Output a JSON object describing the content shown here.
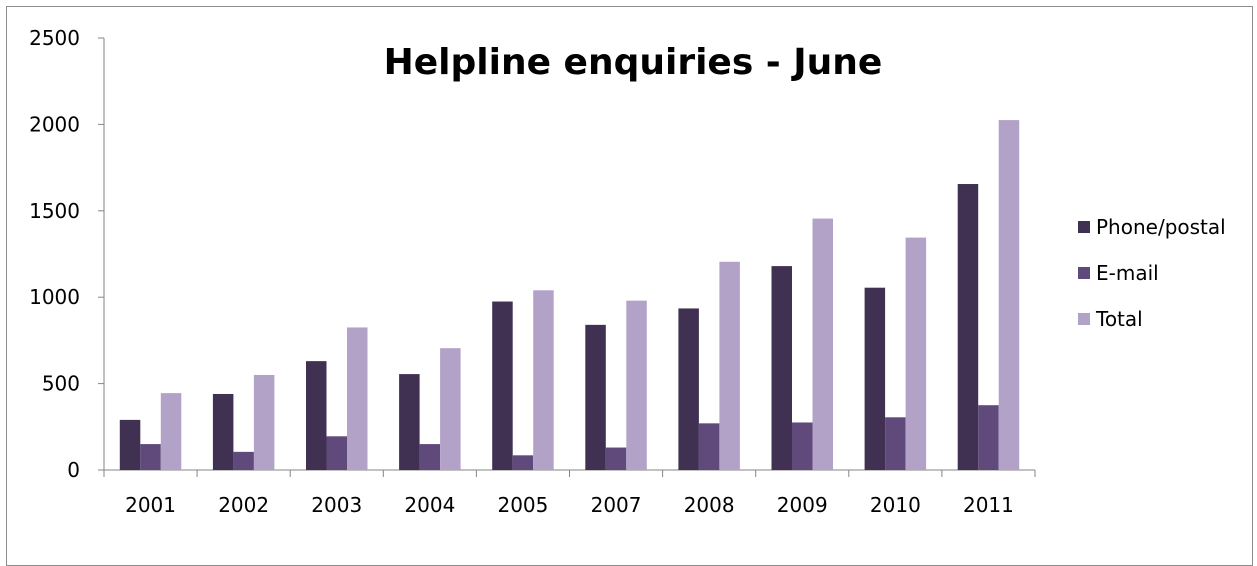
{
  "chart_data": {
    "type": "bar",
    "title": "Helpline enquiries - June",
    "xlabel": "",
    "ylabel": "",
    "categories": [
      "2001",
      "2002",
      "2003",
      "2004",
      "2005",
      "2007",
      "2008",
      "2009",
      "2010",
      "2011"
    ],
    "series": [
      {
        "name": "Phone/postal",
        "color": "#403152",
        "values": [
          290,
          440,
          630,
          555,
          975,
          840,
          935,
          1180,
          1055,
          1655
        ]
      },
      {
        "name": "E-mail",
        "color": "#604a7b",
        "values": [
          150,
          105,
          195,
          150,
          85,
          130,
          270,
          275,
          305,
          375
        ]
      },
      {
        "name": "Total",
        "color": "#b3a2c7",
        "values": [
          445,
          550,
          825,
          705,
          1040,
          980,
          1205,
          1455,
          1345,
          2025
        ]
      }
    ],
    "ylim": [
      0,
      2500
    ],
    "yticks": [
      0,
      500,
      1000,
      1500,
      2000,
      2500
    ],
    "grid": false,
    "legend_position": "right"
  }
}
